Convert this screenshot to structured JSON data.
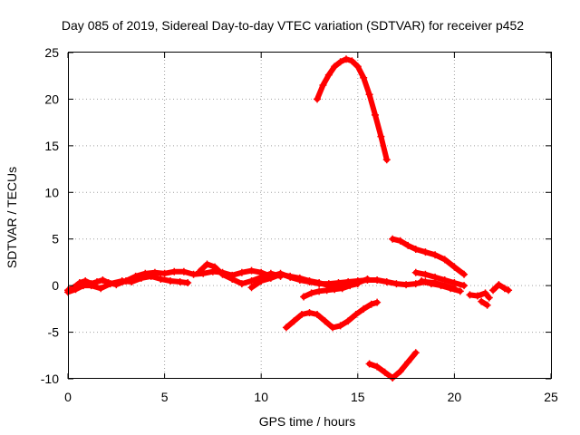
{
  "chart_data": {
    "type": "scatter",
    "title": "Day 085 of 2019, Sidereal Day-to-day VTEC variation (SDTVAR) for receiver p452",
    "xlabel": "GPS time / hours",
    "ylabel": "SDTVAR / TECUs",
    "xlim": [
      0,
      25
    ],
    "ylim": [
      -10,
      25
    ],
    "x_ticks": [
      "0",
      "5",
      "10",
      "15",
      "20",
      "25"
    ],
    "y_ticks": [
      "-10",
      "-5",
      "0",
      "5",
      "10",
      "15",
      "20",
      "25"
    ],
    "grid": true,
    "marker": "plus",
    "color": "#ff0000",
    "series": [
      {
        "x": [
          0.0,
          0.3,
          0.6,
          0.9,
          1.2,
          1.5,
          1.8,
          2.1,
          2.5,
          3.0,
          3.5,
          4.0,
          4.5,
          5.0,
          5.5,
          6.0,
          6.5,
          7.0,
          7.5,
          8.0,
          8.5,
          9.0,
          9.5,
          10.0,
          10.5,
          11.0,
          11.5,
          12.0,
          12.5,
          13.0,
          13.5,
          14.0,
          14.5,
          15.0,
          15.5,
          16.0,
          16.5,
          17.0,
          17.5,
          18.0,
          18.5,
          19.0,
          19.5,
          20.0
        ],
        "y": [
          -0.5,
          -0.2,
          0.3,
          0.5,
          0.2,
          0.4,
          0.6,
          0.3,
          0.1,
          0.5,
          1.0,
          1.3,
          1.4,
          1.3,
          1.5,
          1.5,
          1.2,
          1.3,
          1.5,
          1.4,
          1.1,
          1.4,
          1.6,
          1.4,
          1.0,
          1.3,
          0.9,
          0.6,
          0.4,
          0.2,
          0.2,
          0.3,
          0.4,
          0.5,
          0.6,
          0.6,
          0.4,
          0.2,
          0.1,
          0.2,
          0.4,
          0.3,
          0.0,
          -0.3
        ]
      },
      {
        "x": [
          0.0,
          0.4,
          0.8,
          1.2,
          1.7,
          2.2,
          2.8,
          3.3,
          3.8,
          4.3,
          4.8,
          5.3,
          5.8,
          6.2
        ],
        "y": [
          -0.7,
          -0.4,
          0.0,
          0.0,
          -0.3,
          0.2,
          0.5,
          0.4,
          0.8,
          1.0,
          0.7,
          0.5,
          0.4,
          0.3
        ]
      },
      {
        "x": [
          6.8,
          7.2,
          7.6,
          8.0,
          8.5,
          9.0,
          9.5,
          10.0,
          10.5,
          11.0
        ],
        "y": [
          1.5,
          2.3,
          2.0,
          1.2,
          0.7,
          0.2,
          0.5,
          0.9,
          1.3,
          1.0
        ]
      },
      {
        "x": [
          9.5,
          10.0,
          10.5,
          11.0,
          11.5,
          12.0,
          12.5,
          13.0,
          13.5,
          14.0,
          14.5,
          15.0,
          15.5
        ],
        "y": [
          -0.2,
          0.5,
          0.8,
          1.2,
          1.0,
          0.8,
          0.5,
          0.3,
          0.0,
          -0.1,
          0.1,
          0.3,
          0.7
        ]
      },
      {
        "x": [
          12.2,
          12.6,
          13.0,
          13.4,
          13.8,
          14.2,
          14.6,
          15.0
        ],
        "y": [
          -1.2,
          -0.8,
          -0.6,
          -0.5,
          -0.4,
          -0.3,
          0.0,
          0.2
        ]
      },
      {
        "x": [
          12.9,
          13.2,
          13.5,
          13.8,
          14.1,
          14.4,
          14.7,
          15.0,
          15.3,
          15.6,
          15.9,
          16.2,
          16.5
        ],
        "y": [
          20.0,
          21.5,
          22.6,
          23.5,
          24.0,
          24.3,
          24.1,
          23.5,
          22.3,
          20.5,
          18.3,
          16.0,
          13.5
        ]
      },
      {
        "x": [
          16.8,
          17.2,
          17.6,
          18.0,
          18.5,
          19.0,
          19.5,
          20.0,
          20.5
        ],
        "y": [
          5.0,
          4.8,
          4.3,
          3.9,
          3.6,
          3.3,
          2.8,
          2.0,
          1.2
        ]
      },
      {
        "x": [
          18.0,
          18.5,
          19.0,
          19.5,
          20.0,
          20.5
        ],
        "y": [
          1.4,
          1.2,
          0.9,
          0.6,
          0.3,
          0.0
        ]
      },
      {
        "x": [
          18.3,
          18.8,
          19.3,
          19.8,
          20.3
        ],
        "y": [
          0.5,
          0.2,
          0.0,
          -0.3,
          -0.6
        ]
      },
      {
        "x": [
          20.8,
          21.2,
          21.6,
          21.8
        ],
        "y": [
          -1.0,
          -1.1,
          -0.8,
          -1.3
        ]
      },
      {
        "x": [
          21.4,
          21.7
        ],
        "y": [
          -1.7,
          -2.1
        ]
      },
      {
        "x": [
          22.0,
          22.3,
          22.6,
          22.8
        ],
        "y": [
          -0.5,
          0.1,
          -0.3,
          -0.5
        ]
      },
      {
        "x": [
          11.3,
          11.7,
          12.1,
          12.5,
          12.9,
          13.3,
          13.7,
          14.1,
          14.5,
          14.9,
          15.3,
          15.7,
          16.0
        ],
        "y": [
          -4.5,
          -3.8,
          -3.1,
          -2.9,
          -3.1,
          -3.8,
          -4.5,
          -4.3,
          -3.8,
          -3.1,
          -2.5,
          -2.0,
          -1.8
        ]
      },
      {
        "x": [
          15.6,
          16.0,
          16.4,
          16.8,
          17.2,
          17.6,
          18.0
        ],
        "y": [
          -8.4,
          -8.7,
          -9.3,
          -9.9,
          -9.2,
          -8.2,
          -7.2
        ]
      }
    ]
  }
}
